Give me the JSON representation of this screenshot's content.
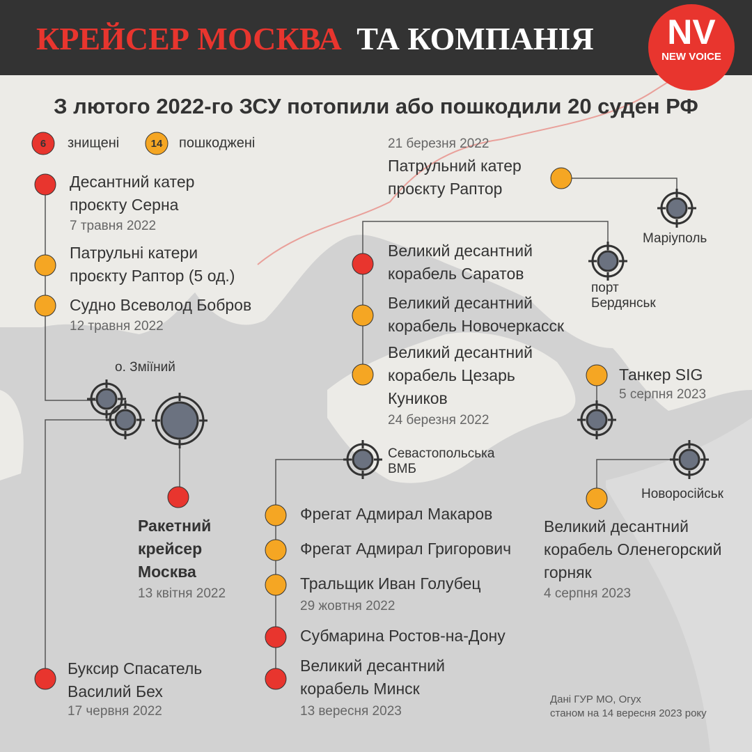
{
  "header": {
    "title_red": "КРЕЙСЕР МОСКВА",
    "title_white": "ТА КОМПАНІЯ",
    "logo": "NV",
    "logo_sub": "NEW VOICE"
  },
  "subtitle": "З лютого 2022-го ЗСУ потопили або пошкодили 20 суден РФ",
  "legend": [
    {
      "count": 6,
      "label": "знищені",
      "color": "#e8352e"
    },
    {
      "count": 14,
      "label": "пошкоджені",
      "color": "#f5a623"
    }
  ],
  "ships": [
    {
      "name": [
        "Десантний катер",
        "проєкту Серна"
      ],
      "date": "7 травня 2022",
      "color": "#e8352e"
    },
    {
      "name": [
        "Патрульні катери",
        "проєкту Раптор (5 од.)"
      ],
      "color": "#f5a623"
    },
    {
      "name": [
        "Судно Всеволод Бобров"
      ],
      "date": "12 травня 2022",
      "color": "#f5a623"
    },
    {
      "name": [
        "Патрульний катер",
        "проєкту Раптор"
      ],
      "date": "21 березня 2022",
      "color": "#f5a623"
    },
    {
      "name": [
        "Великий десантний",
        "корабель Саратов"
      ],
      "color": "#e8352e"
    },
    {
      "name": [
        "Великий десантний",
        "корабель Новочеркасск"
      ],
      "color": "#f5a623"
    },
    {
      "name": [
        "Великий десантний",
        "корабель Цезарь",
        "Куников"
      ],
      "date": "24 березня 2022",
      "color": "#f5a623"
    },
    {
      "name": [
        "Танкер SIG"
      ],
      "date": "5 серпня 2023",
      "color": "#f5a623"
    },
    {
      "name": [
        "Ракетний",
        "крейсер",
        "Москва"
      ],
      "date": "13 квітня 2022",
      "color": "#e8352e"
    },
    {
      "name": [
        "Фрегат Адмирал Макаров"
      ],
      "color": "#f5a623"
    },
    {
      "name": [
        "Фрегат Адмирал Григорович"
      ],
      "color": "#f5a623"
    },
    {
      "name": [
        "Тральщик Иван Голубец"
      ],
      "date": "29 жовтня 2022",
      "color": "#f5a623"
    },
    {
      "name": [
        "Субмарина Ростов-на-Дону"
      ],
      "color": "#e8352e"
    },
    {
      "name": [
        "Великий десантний",
        "корабель Минск"
      ],
      "date": "13 вересня 2023",
      "color": "#e8352e"
    },
    {
      "name": [
        "Буксир Спасатель",
        "Василий Бех"
      ],
      "date": "17 червня 2022",
      "color": "#e8352e"
    },
    {
      "name": [
        "Великий десантний",
        "корабель Оленегорский",
        "горняк"
      ],
      "date": "4 серпня 2023",
      "color": "#f5a623"
    }
  ],
  "places": [
    [
      "о. Зміїний"
    ],
    [
      "Маріуполь"
    ],
    [
      "порт",
      "Бердянськ"
    ],
    [
      "Севастопольська",
      "ВМБ"
    ],
    [
      "Новоросійськ"
    ]
  ],
  "source": [
    "Дані ГУР МО, Огух",
    "станом на 14 вересня 2023 року"
  ]
}
